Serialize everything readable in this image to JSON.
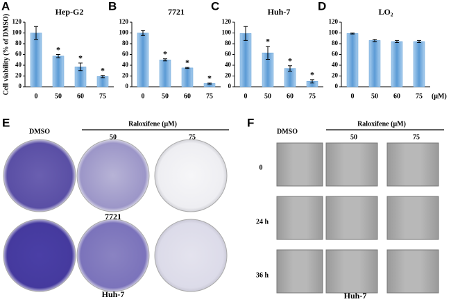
{
  "chart_data": [
    {
      "type": "bar",
      "label": "A",
      "title": "Hep-G2",
      "ylabel": "Cell viability (% of DMSO)",
      "categories": [
        "0",
        "50",
        "60",
        "75"
      ],
      "values": [
        100,
        57,
        37,
        19
      ],
      "errors": [
        12,
        3,
        7,
        2
      ],
      "annotations": [
        null,
        "*",
        "*",
        "*"
      ],
      "color": "#5b9bd5",
      "ylim": [
        0,
        120
      ],
      "yticks": [
        0,
        20,
        40,
        60,
        80,
        100,
        120
      ]
    },
    {
      "type": "bar",
      "label": "B",
      "title": "7721",
      "categories": [
        "0",
        "50",
        "60",
        "75"
      ],
      "values": [
        100,
        50,
        35,
        6
      ],
      "errors": [
        5,
        2,
        1,
        1
      ],
      "annotations": [
        null,
        "*",
        "*",
        "*"
      ],
      "color": "#5b9bd5",
      "ylim": [
        0,
        120
      ],
      "yticks": [
        0,
        20,
        40,
        60,
        80,
        100,
        120
      ]
    },
    {
      "type": "bar",
      "label": "C",
      "title": "Huh-7",
      "categories": [
        "0",
        "50",
        "60",
        "75"
      ],
      "values": [
        99,
        63,
        34,
        10
      ],
      "errors": [
        13,
        12,
        5,
        3
      ],
      "annotations": [
        null,
        "*",
        "*",
        "*"
      ],
      "color": "#5b9bd5",
      "ylim": [
        0,
        120
      ],
      "yticks": [
        0,
        20,
        40,
        60,
        80,
        100,
        120
      ]
    },
    {
      "type": "bar",
      "label": "D",
      "title": "LO₂",
      "xunit": "(μM)",
      "categories": [
        "0",
        "50",
        "60",
        "75"
      ],
      "values": [
        99,
        86,
        84,
        84
      ],
      "errors": [
        1,
        2,
        2,
        2
      ],
      "annotations": [
        null,
        null,
        null,
        null
      ],
      "color": "#5b9bd5",
      "ylim": [
        0,
        120
      ],
      "yticks": [
        0,
        20,
        40,
        60,
        80,
        100,
        120
      ]
    }
  ],
  "colony_assay": {
    "label": "E",
    "control": "DMSO",
    "treatment": "Raloxifene (μM)",
    "doses": [
      "50",
      "75"
    ],
    "rows": [
      "7721",
      "Huh-7"
    ]
  },
  "wound_healing": {
    "label": "F",
    "control": "DMSO",
    "treatment": "Raloxifene (μM)",
    "doses": [
      "50",
      "75"
    ],
    "times": [
      "0",
      "24 h",
      "36 h"
    ],
    "cell_line": "Huh-7"
  }
}
